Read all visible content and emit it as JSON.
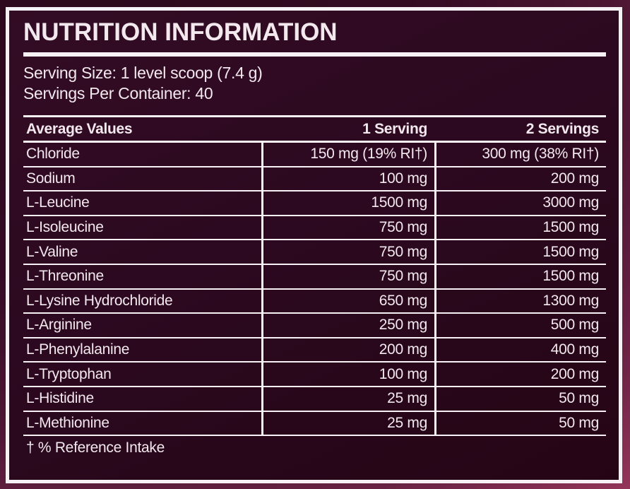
{
  "colors": {
    "outer_background_dark": "#2c0819",
    "outer_background_light": "#a03a60",
    "panel_background": "#2c0920",
    "frame_and_lines": "#f7f1f5",
    "text": "#f2e8ee"
  },
  "header": {
    "title": "NUTRITION INFORMATION"
  },
  "serving_info": {
    "serving_size": "Serving Size: 1 level scoop (7.4 g)",
    "servings_per_container": "Servings Per Container: 40"
  },
  "table": {
    "columns": [
      "Average Values",
      "1 Serving",
      "2 Servings"
    ],
    "rows": [
      {
        "name": "Chloride",
        "serving1": "150 mg (19% RI†)",
        "serving2": "300 mg (38% RI†)"
      },
      {
        "name": "Sodium",
        "serving1": "100 mg",
        "serving2": "200 mg"
      },
      {
        "name": "L-Leucine",
        "serving1": "1500 mg",
        "serving2": "3000 mg"
      },
      {
        "name": "L-Isoleucine",
        "serving1": "750 mg",
        "serving2": "1500 mg"
      },
      {
        "name": "L-Valine",
        "serving1": "750 mg",
        "serving2": "1500 mg"
      },
      {
        "name": "L-Threonine",
        "serving1": "750 mg",
        "serving2": "1500 mg"
      },
      {
        "name": "L-Lysine Hydrochloride",
        "serving1": "650 mg",
        "serving2": "1300 mg"
      },
      {
        "name": "L-Arginine",
        "serving1": "250 mg",
        "serving2": "500 mg"
      },
      {
        "name": "L-Phenylalanine",
        "serving1": "200 mg",
        "serving2": "400 mg"
      },
      {
        "name": "L-Tryptophan",
        "serving1": "100 mg",
        "serving2": "200 mg"
      },
      {
        "name": "L-Histidine",
        "serving1": "25 mg",
        "serving2": "50 mg"
      },
      {
        "name": "L-Methionine",
        "serving1": "25 mg",
        "serving2": "50 mg"
      }
    ],
    "footnote": "† % Reference Intake"
  }
}
